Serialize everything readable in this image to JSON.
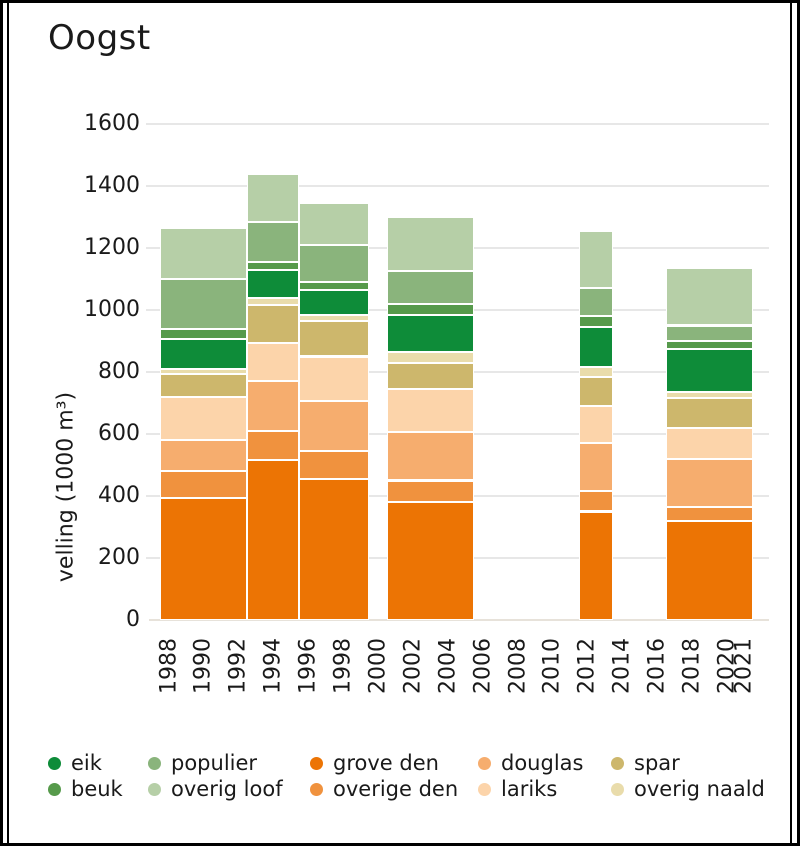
{
  "title": "Oogst",
  "y_axis": {
    "label": "velling (1000 m³)",
    "ticks": [
      0,
      200,
      400,
      600,
      800,
      1000,
      1200,
      1400,
      1600
    ]
  },
  "x_axis": {
    "ticks": [
      "1988",
      "1990",
      "1992",
      "1994",
      "1996",
      "1998",
      "2000",
      "2002",
      "2004",
      "2006",
      "2008",
      "2010",
      "2012",
      "2014",
      "2016",
      "2018",
      "2020",
      "2021"
    ]
  },
  "legend": {
    "rows": [
      [
        "eik",
        "populier",
        "grove den",
        "douglas",
        "spar"
      ],
      [
        "beuk",
        "overig loof",
        "overige den",
        "lariks",
        "overig naald"
      ]
    ]
  },
  "chart_data": {
    "type": "bar",
    "stacked": true,
    "title": "Oogst",
    "xlabel": "",
    "ylabel": "velling (1000 m³)",
    "ylim": [
      0,
      1600
    ],
    "x_domain_years": [
      1987,
      2022
    ],
    "grid": "horizontal",
    "legend_position": "bottom",
    "series": [
      {
        "key": "grove_den",
        "label": "grove den",
        "color": "#ec7404"
      },
      {
        "key": "overige_den",
        "label": "overige den",
        "color": "#f0923e"
      },
      {
        "key": "douglas",
        "label": "douglas",
        "color": "#f6ad6e"
      },
      {
        "key": "lariks",
        "label": "lariks",
        "color": "#fcd4aa"
      },
      {
        "key": "spar",
        "label": "spar",
        "color": "#cdb76c"
      },
      {
        "key": "overig_naald",
        "label": "overig naald",
        "color": "#e9dcab"
      },
      {
        "key": "eik",
        "label": "eik",
        "color": "#0e8c39"
      },
      {
        "key": "beuk",
        "label": "beuk",
        "color": "#569a4b"
      },
      {
        "key": "populier",
        "label": "populier",
        "color": "#8ab47c"
      },
      {
        "key": "overig_loof",
        "label": "overig loof",
        "color": "#b6cfa7"
      }
    ],
    "series_order": "bottom_to_top",
    "columns": [
      {
        "period": "1988-1992",
        "x_start": 1987.5,
        "x_end": 1992.5,
        "values": [
          395,
          85,
          100,
          140,
          75,
          15,
          95,
          35,
          160,
          165
        ],
        "total": 1265
      },
      {
        "period": "1993-1995",
        "x_start": 1992.5,
        "x_end": 1995.5,
        "values": [
          515,
          95,
          160,
          125,
          120,
          25,
          90,
          25,
          130,
          155
        ],
        "total": 1440
      },
      {
        "period": "1996-1999",
        "x_start": 1995.5,
        "x_end": 1999.5,
        "values": [
          455,
          90,
          160,
          145,
          115,
          20,
          80,
          25,
          120,
          135
        ],
        "total": 1345
      },
      {
        "period": "2001-2005",
        "x_start": 2000.5,
        "x_end": 2005.5,
        "values": [
          380,
          70,
          155,
          140,
          85,
          35,
          120,
          35,
          105,
          175
        ],
        "total": 1300
      },
      {
        "period": "2012-2013",
        "x_start": 2011.5,
        "x_end": 2013.5,
        "values": [
          350,
          65,
          155,
          120,
          95,
          30,
          130,
          35,
          90,
          185
        ],
        "total": 1255
      },
      {
        "period": "2017-2021",
        "x_start": 2016.5,
        "x_end": 2021.5,
        "values": [
          320,
          45,
          155,
          100,
          95,
          20,
          140,
          25,
          50,
          185
        ],
        "total": 1135
      }
    ]
  }
}
